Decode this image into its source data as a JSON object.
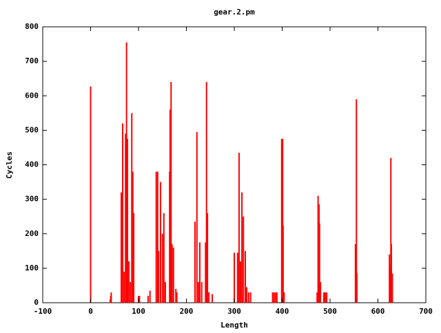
{
  "chart_data": {
    "type": "bar",
    "title": "gear.2.pm",
    "x_label": "Length",
    "y_label": "Cycles",
    "color": "#ff0000",
    "xlim": [
      -100,
      700
    ],
    "xticks": [
      -100,
      0,
      100,
      200,
      300,
      400,
      500,
      600,
      700
    ],
    "ylim": [
      0,
      800
    ],
    "yticks": [
      0,
      100,
      200,
      300,
      400,
      500,
      600,
      700,
      800
    ],
    "x": [
      0,
      41,
      42,
      43,
      64,
      67,
      70,
      73,
      75,
      77,
      80,
      83,
      86,
      88,
      90,
      100,
      102,
      120,
      124,
      137,
      140,
      142,
      146,
      150,
      153,
      156,
      165,
      166,
      168,
      170,
      173,
      178,
      180,
      218,
      222,
      225,
      228,
      232,
      240,
      242,
      244,
      247,
      254,
      300,
      307,
      310,
      313,
      316,
      319,
      323,
      326,
      330,
      334,
      380,
      383,
      386,
      389,
      399,
      401,
      402,
      404,
      473,
      475,
      477,
      478,
      480,
      487,
      490,
      493,
      553,
      555,
      556,
      624,
      625,
      627,
      628,
      630
    ],
    "values": [
      627,
      10,
      20,
      30,
      320,
      520,
      90,
      490,
      755,
      475,
      120,
      60,
      550,
      380,
      260,
      20,
      20,
      20,
      35,
      380,
      380,
      150,
      350,
      200,
      260,
      60,
      380,
      560,
      640,
      170,
      160,
      40,
      30,
      235,
      495,
      60,
      175,
      60,
      175,
      640,
      260,
      30,
      25,
      145,
      145,
      435,
      120,
      320,
      250,
      150,
      45,
      30,
      30,
      30,
      30,
      30,
      30,
      475,
      475,
      225,
      30,
      30,
      310,
      285,
      230,
      60,
      30,
      30,
      30,
      170,
      590,
      85,
      140,
      110,
      420,
      170,
      85
    ]
  }
}
